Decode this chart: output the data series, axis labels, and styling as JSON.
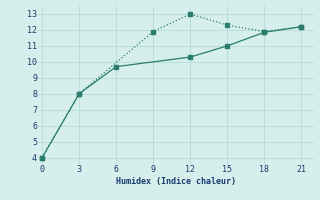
{
  "line1_x": [
    0,
    3,
    6,
    12,
    15,
    18,
    21
  ],
  "line1_y": [
    4.0,
    8.0,
    9.7,
    10.3,
    11.0,
    11.85,
    12.2
  ],
  "line2_x": [
    0,
    3,
    9,
    12,
    15,
    18,
    21
  ],
  "line2_y": [
    4.0,
    8.0,
    11.9,
    13.0,
    12.3,
    11.9,
    12.2
  ],
  "line_color": "#2a7d6e",
  "bg_color": "#d6efec",
  "grid_color": "#b8dbd8",
  "xlabel": "Humidex (Indice chaleur)",
  "xticks": [
    0,
    3,
    6,
    9,
    12,
    15,
    18,
    21
  ],
  "yticks": [
    4,
    5,
    6,
    7,
    8,
    9,
    10,
    11,
    12,
    13
  ],
  "ylim": [
    3.6,
    13.5
  ],
  "xlim": [
    -0.3,
    22.0
  ]
}
